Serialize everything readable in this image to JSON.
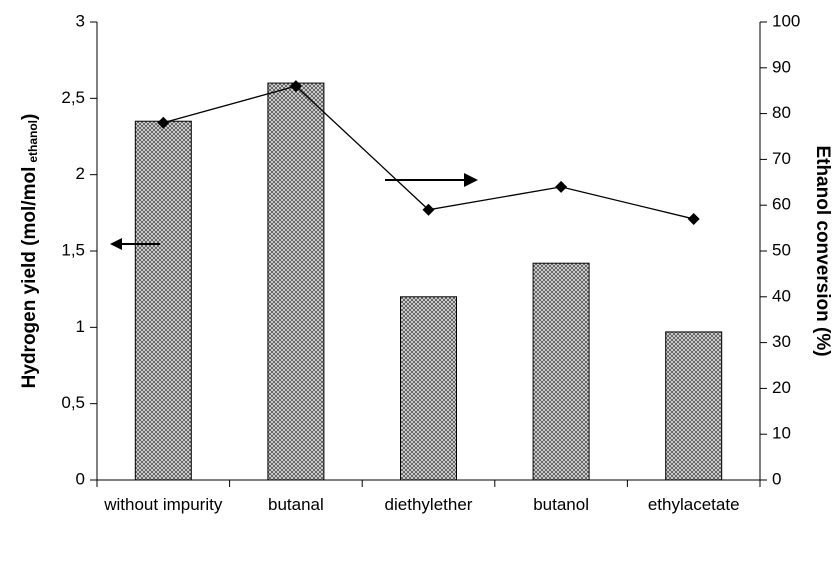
{
  "chart_data": {
    "type": "bar_line",
    "categories": [
      "without impurity",
      "butanal",
      "diethylether",
      "butanol",
      "ethylacetate"
    ],
    "y_label": {
      "text": "Hydrogen yield (mol/mol",
      "subscript": "ethanol",
      "close": ")"
    },
    "y2_label": "Ethanol conversion (%)",
    "series": [
      {
        "type": "bar",
        "color": "#8c8c8c",
        "values": [
          2.35,
          2.6,
          1.2,
          1.42,
          0.97
        ]
      },
      {
        "type": "line",
        "axis": "y2",
        "color": "#000000",
        "values": [
          78,
          86,
          59,
          64,
          57
        ]
      }
    ],
    "ylim": [
      0,
      3
    ],
    "yticks": [
      0,
      {
        "value": 0.5,
        "label": "0,5"
      },
      1,
      {
        "value": 1.5,
        "label": "1,5"
      },
      2,
      {
        "value": 2.5,
        "label": "2,5"
      },
      3
    ],
    "y2lim": [
      0,
      100
    ],
    "y2ticks": [
      0,
      10,
      20,
      30,
      40,
      50,
      60,
      70,
      80,
      90,
      100
    ]
  }
}
